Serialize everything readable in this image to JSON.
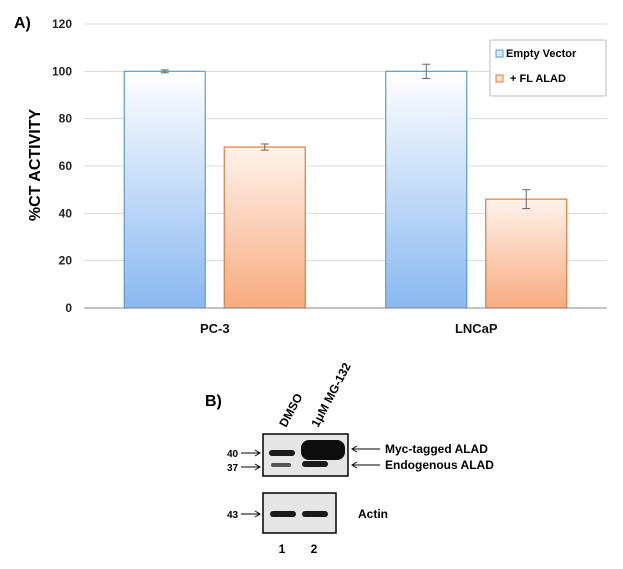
{
  "panel_a_label": "A)",
  "panel_b_label": "B)",
  "chart_data": {
    "type": "bar",
    "title": "",
    "xlabel": "",
    "ylabel": "%CT ACTIVITY",
    "ylim": [
      0,
      120
    ],
    "yticks": [
      "0",
      "20",
      "40",
      "60",
      "80",
      "100",
      "120"
    ],
    "grid": "horizontal",
    "legend_position": "top-right",
    "categories": [
      "PC-3",
      "LNCaP"
    ],
    "series": [
      {
        "name": "Empty Vector",
        "values": [
          100,
          100
        ],
        "errors": [
          0.6,
          3.0
        ],
        "color": "#8ab8f0",
        "edge": "#5b9bd5"
      },
      {
        "name": "+ FL ALAD",
        "values": [
          68,
          46
        ],
        "errors": [
          1.3,
          4.0
        ],
        "color": "#f7ab80",
        "edge": "#e07b39"
      }
    ]
  },
  "western_blot": {
    "lane_labels": [
      "DMSO",
      "1μM MG-132"
    ],
    "lane_numbers": [
      "1",
      "2"
    ],
    "top_panel": {
      "markers": [
        "40",
        "37"
      ],
      "band_labels": [
        "Myc-tagged ALAD",
        "Endogenous  ALAD"
      ]
    },
    "bottom_panel": {
      "markers": [
        "43"
      ],
      "band_labels": [
        "Actin"
      ]
    }
  }
}
